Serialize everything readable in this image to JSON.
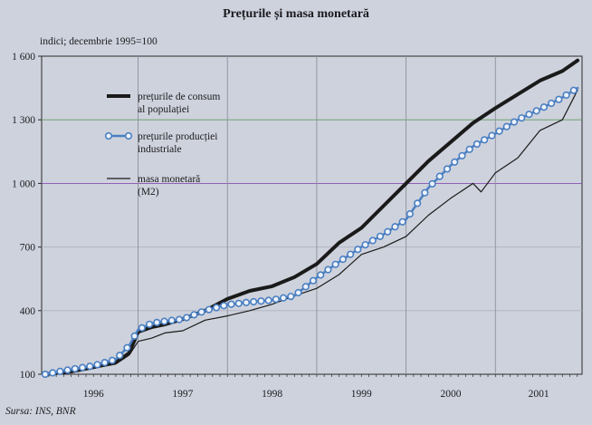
{
  "colors": {
    "background": "#ced2dc",
    "consumer": "#1a1a1a",
    "producer_line": "#4a7fc2",
    "producer_marker_fill": "#eef3fb",
    "money": "#1a1a1a",
    "grid_1300": "#5f9b5f",
    "grid_1000": "#8a4fb4",
    "grid_other": "#aeb3c0"
  },
  "chart_data": {
    "type": "line",
    "title": "Prețurile și masa monetară",
    "ylabel": "indici; decembrie 1995=100",
    "source": "Sursa: INS, BNR",
    "ylim": [
      100,
      1600
    ],
    "yticks": [
      100,
      400,
      700,
      1000,
      1300,
      1600
    ],
    "ytick_labels": [
      "100",
      "400",
      "700",
      "1 000",
      "1 300",
      "1 600"
    ],
    "xlim": [
      1995.92,
      2001.97
    ],
    "year_labels": [
      "1996",
      "1997",
      "1998",
      "1999",
      "2000",
      "2001"
    ],
    "year_dividers": [
      1997.0,
      1998.0,
      1999.0,
      2000.0,
      2001.0
    ],
    "grid": true,
    "legend_position": "upper-left",
    "series": [
      {
        "name": "prețurile de consum al populației",
        "legend_lines": [
          "prețurile de consum",
          "al populației"
        ],
        "style": "thick",
        "x": [
          1995.96,
          1996.25,
          1996.5,
          1996.75,
          1996.9,
          1997.0,
          1997.15,
          1997.3,
          1997.5,
          1997.75,
          1998.0,
          1998.25,
          1998.5,
          1998.75,
          1999.0,
          1999.25,
          1999.5,
          1999.75,
          2000.0,
          2000.25,
          2000.5,
          2000.75,
          2001.0,
          2001.25,
          2001.5,
          2001.75,
          2001.92
        ],
        "y": [
          100,
          113,
          133,
          157,
          200,
          300,
          322,
          335,
          360,
          400,
          455,
          493,
          515,
          558,
          620,
          720,
          790,
          895,
          1000,
          1105,
          1195,
          1285,
          1355,
          1420,
          1485,
          1530,
          1580
        ]
      },
      {
        "name": "prețurile producției industriale",
        "legend_lines": [
          "prețurile producției",
          "industriale"
        ],
        "style": "line-with-circles",
        "x": [
          1995.96,
          1996.25,
          1996.5,
          1996.75,
          1996.9,
          1997.0,
          1997.15,
          1997.3,
          1997.5,
          1997.75,
          1998.0,
          1998.25,
          1998.5,
          1998.75,
          1999.0,
          1999.25,
          1999.5,
          1999.75,
          2000.0,
          2000.25,
          2000.5,
          2000.75,
          2001.0,
          2001.25,
          2001.5,
          2001.75,
          2001.92
        ],
        "y": [
          100,
          123,
          140,
          170,
          235,
          310,
          340,
          350,
          360,
          400,
          428,
          440,
          450,
          470,
          555,
          630,
          700,
          760,
          830,
          980,
          1085,
          1175,
          1235,
          1300,
          1350,
          1405,
          1450
        ]
      },
      {
        "name": "masa monetară (M2)",
        "legend_lines": [
          "masa monetară",
          "(M2)"
        ],
        "style": "thin",
        "x": [
          1995.96,
          1996.25,
          1996.5,
          1996.75,
          1996.9,
          1997.0,
          1997.15,
          1997.3,
          1997.5,
          1997.75,
          1998.0,
          1998.25,
          1998.5,
          1998.75,
          1999.0,
          1999.25,
          1999.5,
          1999.75,
          2000.0,
          2000.25,
          2000.5,
          2000.75,
          2000.84,
          2001.0,
          2001.25,
          2001.5,
          2001.75,
          2001.92
        ],
        "y": [
          100,
          108,
          128,
          148,
          190,
          255,
          270,
          295,
          305,
          355,
          375,
          400,
          430,
          470,
          505,
          570,
          665,
          700,
          750,
          850,
          930,
          1000,
          960,
          1050,
          1120,
          1250,
          1300,
          1440
        ]
      }
    ]
  }
}
